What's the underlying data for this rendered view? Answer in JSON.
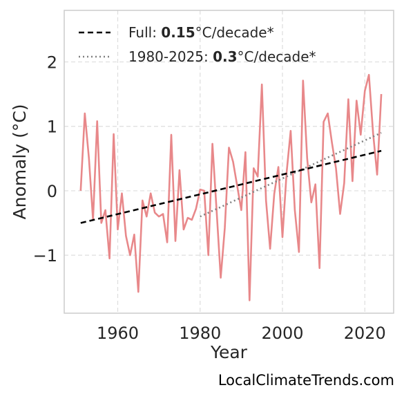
{
  "chart_data": {
    "type": "line",
    "xlabel": "Year",
    "ylabel": "Anomaly (°C)",
    "xlim": [
      1947,
      2027
    ],
    "ylim": [
      -1.9,
      2.8
    ],
    "xticks": [
      1960,
      1980,
      2000,
      2020
    ],
    "yticks": [
      -1,
      0,
      1,
      2
    ],
    "ytick_labels": [
      "−1",
      "0",
      "1",
      "2"
    ],
    "grid": true,
    "legend_position": "top-left",
    "colors": {
      "series": "#e8888a",
      "full_trend": "#000000",
      "recent_trend": "#808080",
      "grid": "#dddddd",
      "frame": "#cccccc"
    },
    "series": [
      {
        "x": [
          1951,
          1952,
          1953,
          1954,
          1955,
          1956,
          1957,
          1958,
          1959,
          1960,
          1961,
          1962,
          1963,
          1964,
          1965,
          1966,
          1967,
          1968,
          1969,
          1970,
          1971,
          1972,
          1973,
          1974,
          1975,
          1976,
          1977,
          1978,
          1979,
          1980,
          1981,
          1982,
          1983,
          1984,
          1985,
          1986,
          1987,
          1988,
          1989,
          1990,
          1991,
          1992,
          1993,
          1994,
          1995,
          1996,
          1997,
          1998,
          1999,
          2000,
          2001,
          2002,
          2003,
          2004,
          2005,
          2006,
          2007,
          2008,
          2009,
          2010,
          2011,
          2012,
          2013,
          2014,
          2015,
          2016,
          2017,
          2018,
          2019,
          2020,
          2021,
          2022,
          2023,
          2024
        ],
        "values": [
          0.0,
          1.2,
          0.5,
          -0.45,
          1.08,
          -0.5,
          -0.3,
          -1.05,
          0.88,
          -0.6,
          -0.04,
          -0.7,
          -1.0,
          -0.68,
          -1.57,
          -0.15,
          -0.4,
          -0.04,
          -0.34,
          -0.4,
          -0.36,
          -0.8,
          0.87,
          -0.78,
          0.32,
          -0.6,
          -0.42,
          -0.45,
          -0.28,
          0.02,
          0.0,
          -1.0,
          0.73,
          -0.3,
          -1.35,
          -0.58,
          0.67,
          0.45,
          0.08,
          -0.3,
          0.6,
          -1.7,
          0.35,
          0.22,
          1.65,
          -0.15,
          -0.9,
          -0.05,
          0.37,
          -0.72,
          0.28,
          0.93,
          -0.3,
          -0.95,
          1.71,
          0.5,
          -0.18,
          0.1,
          -1.2,
          1.07,
          1.2,
          0.75,
          0.35,
          -0.36,
          0.12,
          1.42,
          0.15,
          1.4,
          0.87,
          1.55,
          1.8,
          0.9,
          0.25,
          1.5
        ]
      }
    ],
    "trend_lines": [
      {
        "x": [
          1951,
          2024
        ],
        "values": [
          -0.5,
          0.62
        ]
      },
      {
        "x": [
          1980,
          2024
        ],
        "values": [
          -0.4,
          0.9
        ]
      }
    ],
    "legend": [
      {
        "pre": "Full: ",
        "bold": "0.15",
        "post": "°C/decade*"
      },
      {
        "pre": "1980-2025: ",
        "bold": "0.3",
        "post": "°C/decade*"
      }
    ]
  },
  "credit": "LocalClimateTrends.com"
}
